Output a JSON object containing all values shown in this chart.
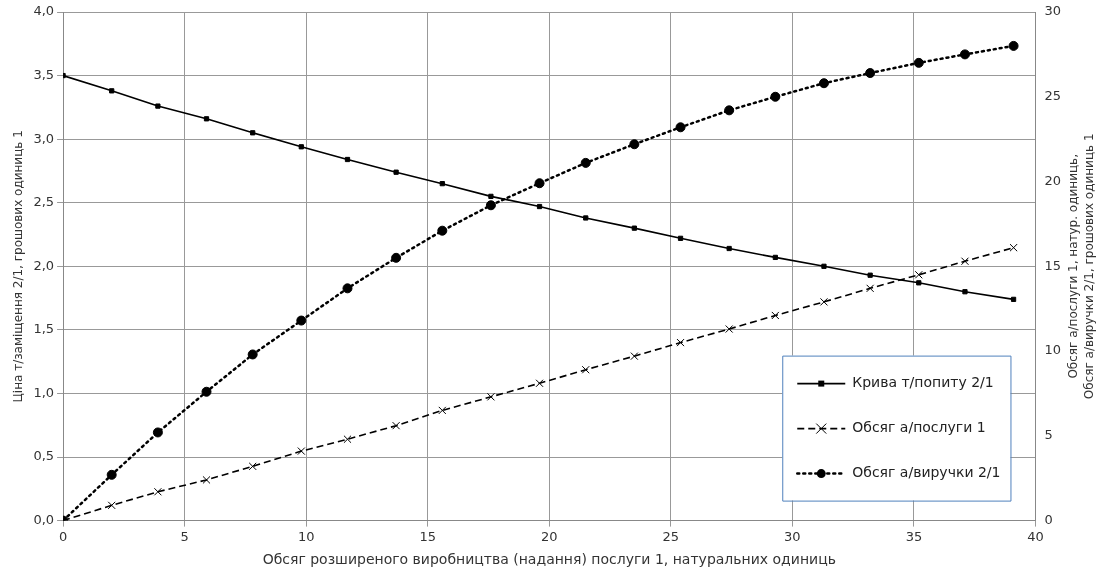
{
  "chart_data": {
    "type": "line",
    "xlabel": "Обсяг розширеного виробництва (надання) послуги 1, натуральних одиниць",
    "ylabel": "Ціна т/заміщення 2/1, грошових одиниць 1",
    "y2label": "Обсяг а/послуги 1, натур. одиниць,\nОбсяг а/виручки 2/1, грошових одиниць 1",
    "x": [
      0,
      2.0,
      3.9,
      5.9,
      7.8,
      9.8,
      11.7,
      13.7,
      15.6,
      17.6,
      19.6,
      21.5,
      23.5,
      25.4,
      27.4,
      29.3,
      31.3,
      33.2,
      35.2,
      37.1,
      39.1
    ],
    "series": [
      {
        "name": "Крива т/попиту 2/1",
        "color": "#000000",
        "marker": "square",
        "line_style": "solid",
        "values": [
          3.5,
          3.38,
          3.26,
          3.16,
          3.05,
          2.94,
          2.84,
          2.74,
          2.65,
          2.55,
          2.47,
          2.38,
          2.3,
          2.22,
          2.14,
          2.07,
          2.0,
          1.93,
          1.87,
          1.8,
          1.74
        ]
      },
      {
        "name": "Обсяг а/послуги 1",
        "color": "#000000",
        "marker": "cross",
        "line_style": "dashed",
        "axis": "y2",
        "values": [
          0,
          0.9,
          1.7,
          2.4,
          3.2,
          4.1,
          4.8,
          5.6,
          6.5,
          7.3,
          8.1,
          8.9,
          9.7,
          10.5,
          11.3,
          12.1,
          12.9,
          13.7,
          14.5,
          15.3,
          16.1
        ]
      },
      {
        "name": "Обсяг а/виручки 2/1",
        "color": "#000000",
        "marker": "circle",
        "line_style": "dotted",
        "axis": "y2",
        "values": [
          0,
          2.7,
          5.2,
          7.6,
          9.8,
          11.8,
          13.7,
          15.5,
          17.1,
          18.6,
          19.9,
          21.1,
          22.2,
          23.2,
          24.2,
          25.0,
          25.8,
          26.4,
          27.0,
          27.5,
          28.0
        ]
      }
    ],
    "xlim": [
      0,
      40
    ],
    "xticks": [
      0,
      5,
      10,
      15,
      20,
      25,
      30,
      35,
      40
    ],
    "ylim": [
      0,
      4
    ],
    "yticks": [
      {
        "value": 0,
        "label": "0,0"
      },
      {
        "value": 0.5,
        "label": "0,5"
      },
      {
        "value": 1,
        "label": "1,0"
      },
      {
        "value": 1.5,
        "label": "1,5"
      },
      {
        "value": 2,
        "label": "2,0"
      },
      {
        "value": 2.5,
        "label": "2,5"
      },
      {
        "value": 3,
        "label": "3,0"
      },
      {
        "value": 3.5,
        "label": "3,5"
      },
      {
        "value": 4,
        "label": "4,0"
      }
    ],
    "y2lim": [
      0,
      30
    ],
    "y2ticks": [
      0,
      5,
      10,
      15,
      20,
      25,
      30
    ],
    "grid": true,
    "legend": "bottom right"
  }
}
